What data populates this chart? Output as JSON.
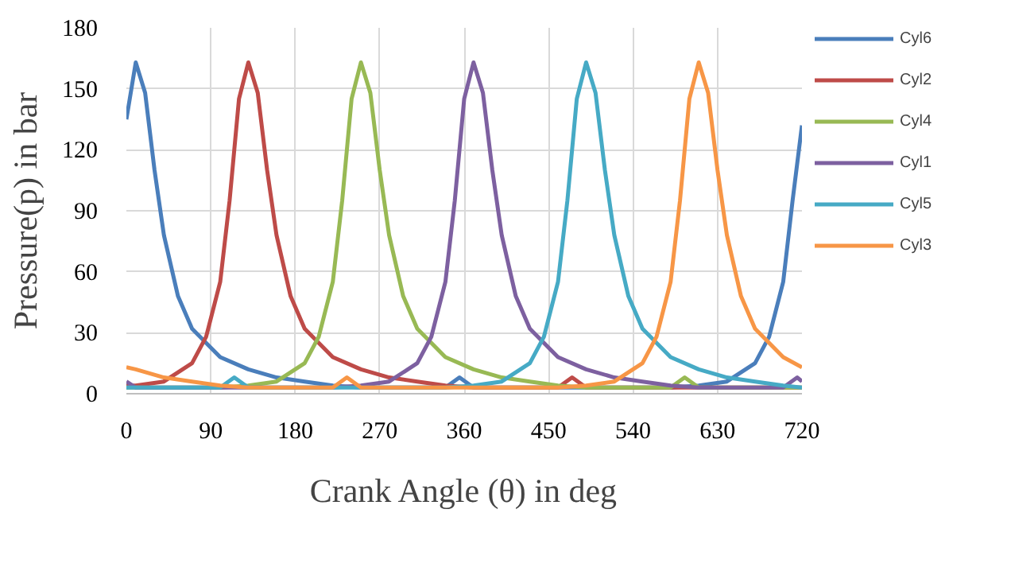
{
  "chart_data": {
    "type": "line",
    "xlabel": "Crank Angle (θ) in deg",
    "ylabel": "Pressure(p) in bar",
    "xlim": [
      0,
      720
    ],
    "xticks": [
      0,
      90,
      180,
      270,
      360,
      450,
      540,
      630,
      720
    ],
    "ylim": [
      0,
      180
    ],
    "yticks": [
      0,
      30,
      60,
      90,
      120,
      150,
      180
    ],
    "grid": true,
    "legend": "top right",
    "marker": "none",
    "line_style": "solid",
    "series": [
      {
        "name": "Cyl6",
        "color": "#4a7ebb",
        "x": [
          0,
          10,
          20,
          30,
          40,
          55,
          70,
          100,
          130,
          160,
          190,
          220,
          250,
          340,
          355,
          370,
          580,
          610,
          640,
          670,
          685,
          700,
          710,
          720
        ],
        "values": [
          135,
          163,
          148,
          110,
          78,
          48,
          32,
          18,
          12,
          8,
          6,
          4,
          3,
          3,
          8,
          3,
          3,
          4,
          6,
          15,
          28,
          55,
          95,
          132
        ]
      },
      {
        "name": "Cyl2",
        "color": "#be4b48",
        "x": [
          0,
          10,
          40,
          70,
          85,
          100,
          110,
          120,
          130,
          140,
          150,
          160,
          175,
          190,
          220,
          250,
          280,
          310,
          340,
          370,
          460,
          475,
          490,
          720
        ],
        "values": [
          4,
          4,
          6,
          15,
          28,
          55,
          95,
          145,
          163,
          148,
          110,
          78,
          48,
          32,
          18,
          12,
          8,
          6,
          4,
          3,
          3,
          8,
          3,
          3
        ]
      },
      {
        "name": "Cyl4",
        "color": "#98b954",
        "x": [
          0,
          100,
          130,
          160,
          190,
          205,
          220,
          230,
          240,
          250,
          260,
          270,
          280,
          295,
          310,
          340,
          370,
          400,
          430,
          460,
          490,
          580,
          595,
          610,
          720
        ],
        "values": [
          3,
          3,
          4,
          6,
          15,
          28,
          55,
          95,
          145,
          163,
          148,
          110,
          78,
          48,
          32,
          18,
          12,
          8,
          6,
          4,
          3,
          3,
          8,
          3,
          3
        ]
      },
      {
        "name": "Cyl1",
        "color": "#7d60a0",
        "x": [
          0,
          10,
          220,
          250,
          280,
          310,
          325,
          340,
          350,
          360,
          370,
          380,
          390,
          400,
          415,
          430,
          460,
          490,
          520,
          550,
          580,
          610,
          700,
          715,
          720
        ],
        "values": [
          6,
          3,
          3,
          4,
          6,
          15,
          28,
          55,
          95,
          145,
          163,
          148,
          110,
          78,
          48,
          32,
          18,
          12,
          8,
          6,
          4,
          3,
          3,
          8,
          6
        ]
      },
      {
        "name": "Cyl5",
        "color": "#46aac5",
        "x": [
          0,
          10,
          100,
          115,
          130,
          340,
          370,
          400,
          430,
          445,
          460,
          470,
          480,
          490,
          500,
          510,
          520,
          535,
          550,
          580,
          610,
          640,
          670,
          700,
          720
        ],
        "values": [
          3,
          3,
          3,
          8,
          3,
          3,
          4,
          6,
          15,
          28,
          55,
          95,
          145,
          163,
          148,
          110,
          78,
          48,
          32,
          18,
          12,
          8,
          6,
          4,
          3
        ]
      },
      {
        "name": "Cyl3",
        "color": "#f79646",
        "x": [
          0,
          10,
          40,
          70,
          100,
          130,
          220,
          235,
          250,
          460,
          490,
          520,
          550,
          565,
          580,
          590,
          600,
          610,
          620,
          630,
          640,
          655,
          670,
          700,
          720
        ],
        "values": [
          13,
          12,
          8,
          6,
          4,
          3,
          3,
          8,
          3,
          3,
          4,
          6,
          15,
          28,
          55,
          95,
          145,
          163,
          148,
          110,
          78,
          48,
          32,
          18,
          13
        ]
      }
    ]
  }
}
